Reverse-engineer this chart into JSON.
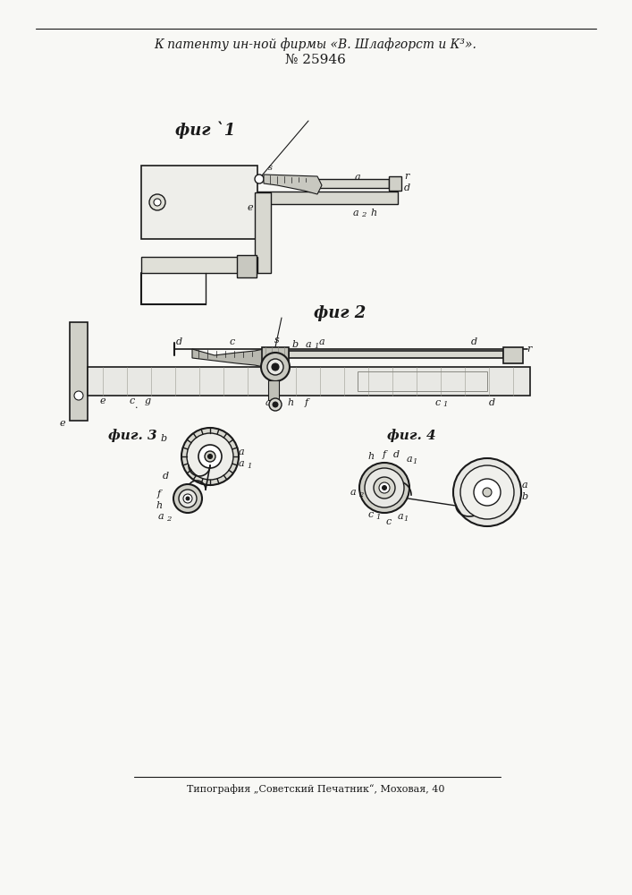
{
  "title_line1": "К патенту ин-ной фирмы «B. Шлафгорст и К³».",
  "title_line2": "№ 25946",
  "footer": "Типография „Советский Печатник“, Моховая, 40",
  "fig1_label": "фиг `1",
  "fig2_label": "фиг 2",
  "fig3_label": "фиг. 3",
  "fig4_label": "фиг. 4",
  "bg_color": "#f8f8f5",
  "line_color": "#1a1a1a",
  "text_color": "#1a1a1a"
}
